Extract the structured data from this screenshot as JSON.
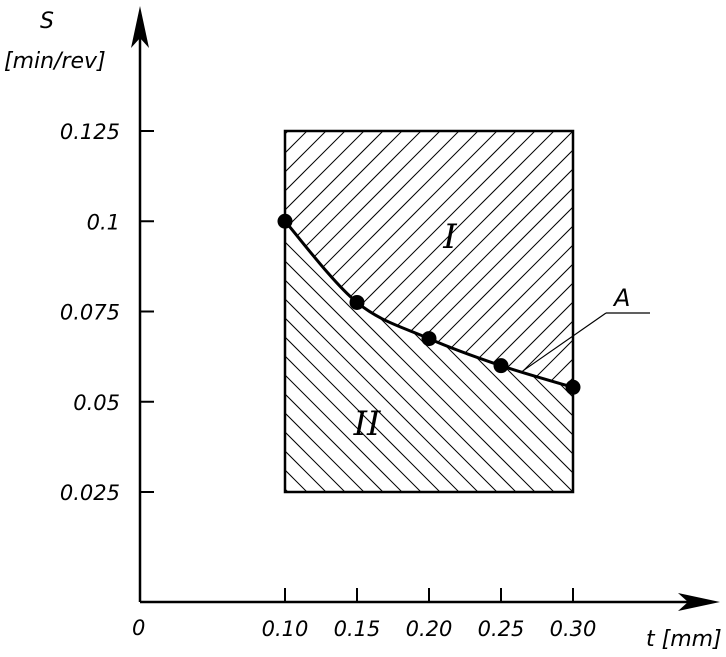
{
  "chart_data": {
    "type": "line",
    "ylabel_symbol": "S",
    "ylabel_unit": "[min/rev]",
    "xlabel": "t [mm]",
    "origin_label": "0",
    "x_ticks": [
      {
        "value": 0.1,
        "label": "0.10"
      },
      {
        "value": 0.15,
        "label": "0.15"
      },
      {
        "value": 0.2,
        "label": "0.20"
      },
      {
        "value": 0.25,
        "label": "0.25"
      },
      {
        "value": 0.3,
        "label": "0.30"
      }
    ],
    "y_ticks": [
      {
        "value": 0.025,
        "label": "0.025"
      },
      {
        "value": 0.05,
        "label": "0.05"
      },
      {
        "value": 0.075,
        "label": "0.075"
      },
      {
        "value": 0.1,
        "label": "0.1"
      },
      {
        "value": 0.125,
        "label": "0.125"
      }
    ],
    "series": [
      {
        "x": [
          0.1,
          0.15,
          0.2,
          0.25,
          0.3
        ],
        "y": [
          0.1,
          0.0775,
          0.0675,
          0.06,
          0.054
        ]
      }
    ],
    "regions": {
      "x_range": [
        0.1,
        0.3
      ],
      "y_range": [
        0.025,
        0.125
      ],
      "above_label": "I",
      "below_label": "II"
    },
    "annotation": {
      "label": "A",
      "target_x": 0.265,
      "target_y": 0.0585
    },
    "grid": false
  }
}
